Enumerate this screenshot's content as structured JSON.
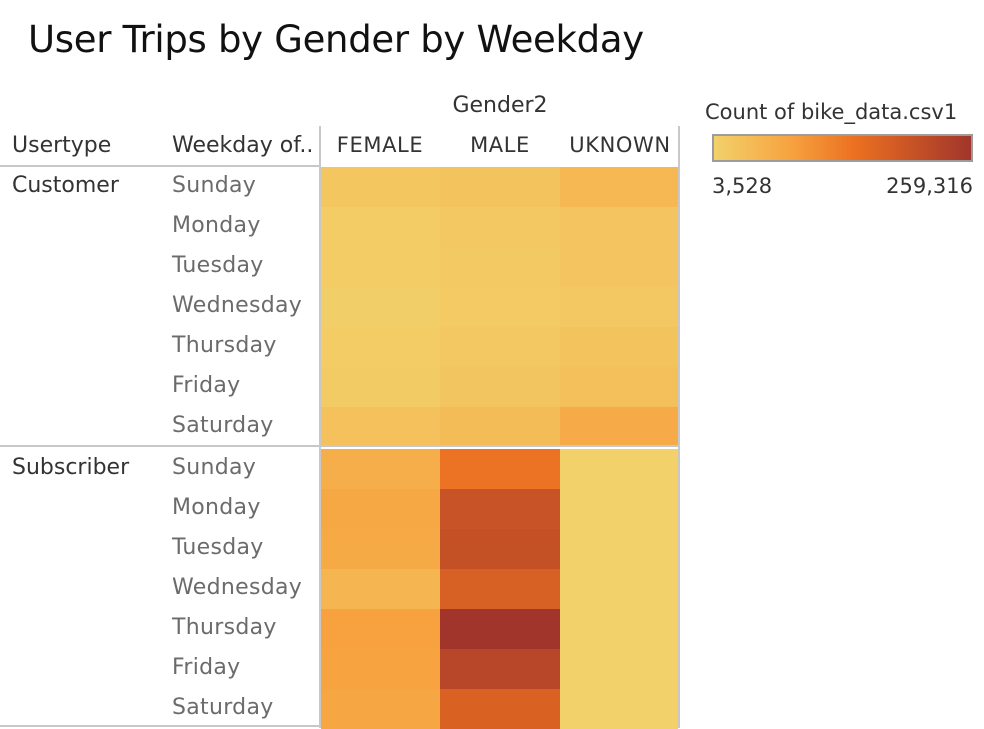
{
  "chart_data": {
    "type": "heatmap",
    "title": "User Trips by Gender by Weekday",
    "column_group_label": "Gender2",
    "row_header_labels": [
      "Usertype",
      "Weekday of.."
    ],
    "columns": [
      "FEMALE",
      "MALE",
      "UKNOWN"
    ],
    "row_groups": [
      {
        "name": "Customer",
        "rows": [
          {
            "weekday": "Sunday",
            "values": [
              22000,
              26000,
              45000
            ]
          },
          {
            "weekday": "Monday",
            "values": [
              12000,
              18000,
              24000
            ]
          },
          {
            "weekday": "Tuesday",
            "values": [
              12000,
              17000,
              24000
            ]
          },
          {
            "weekday": "Wednesday",
            "values": [
              8000,
              15000,
              20000
            ]
          },
          {
            "weekday": "Thursday",
            "values": [
              12000,
              19000,
              26000
            ]
          },
          {
            "weekday": "Friday",
            "values": [
              14000,
              23000,
              31000
            ]
          },
          {
            "weekday": "Saturday",
            "values": [
              30000,
              38000,
              65000
            ]
          }
        ]
      },
      {
        "name": "Subscriber",
        "rows": [
          {
            "weekday": "Sunday",
            "values": [
              60000,
              140000,
              3528
            ]
          },
          {
            "weekday": "Monday",
            "values": [
              70000,
              200000,
              3528
            ]
          },
          {
            "weekday": "Tuesday",
            "values": [
              68000,
              205000,
              3528
            ]
          },
          {
            "weekday": "Wednesday",
            "values": [
              50000,
              175000,
              3528
            ]
          },
          {
            "weekday": "Thursday",
            "values": [
              80000,
              259316,
              3528
            ]
          },
          {
            "weekday": "Friday",
            "values": [
              78000,
              225000,
              3528
            ]
          },
          {
            "weekday": "Saturday",
            "values": [
              72000,
              172000,
              3528
            ]
          }
        ]
      }
    ],
    "legend": {
      "title": "Count of bike_data.csv1",
      "min": 3528,
      "max": 259316,
      "min_label": "3,528",
      "max_label": "259,316",
      "colors": [
        "#f2d16b",
        "#f7a23f",
        "#eb7021",
        "#a1352b"
      ]
    }
  }
}
